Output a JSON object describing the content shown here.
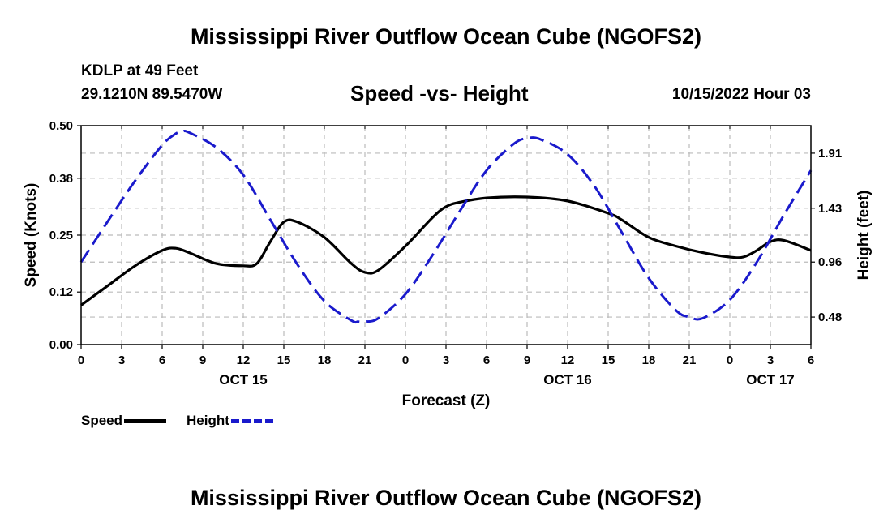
{
  "header": {
    "title": "Mississippi River Outflow Ocean Cube (NGOFS2)",
    "station": "KDLP at 49 Feet",
    "coords": "29.1210N  89.5470W",
    "chart_title": "Speed -vs- Height",
    "datetime": "10/15/2022 Hour 03"
  },
  "footer": {
    "title": "Mississippi River Outflow Ocean Cube (NGOFS2)"
  },
  "legend": {
    "speed_label": "Speed",
    "height_label": "Height"
  },
  "colors": {
    "speed": "#000000",
    "height": "#1a1acc",
    "grid": "#bbbbbb"
  },
  "chart_data": {
    "type": "line",
    "title": "Speed -vs- Height",
    "xlabel": "Forecast (Z)",
    "ylabel": "Speed (Knots)",
    "y2label": "Height (feet)",
    "grid": true,
    "legend_position": "bottom-left",
    "xlim": [
      0,
      54
    ],
    "ylim": [
      0,
      0.5
    ],
    "y2lim": [
      0.24,
      2.15
    ],
    "x_ticks": [
      0,
      3,
      6,
      9,
      12,
      15,
      18,
      21,
      24,
      27,
      30,
      33,
      36,
      39,
      42,
      45,
      48,
      51,
      54
    ],
    "x_tick_labels": [
      "0",
      "3",
      "6",
      "9",
      "12",
      "15",
      "18",
      "21",
      "0",
      "3",
      "6",
      "9",
      "12",
      "15",
      "18",
      "21",
      "0",
      "3",
      "6"
    ],
    "day_labels": [
      {
        "x": 12,
        "label": "OCT 15"
      },
      {
        "x": 36,
        "label": "OCT 16"
      },
      {
        "x": 51,
        "label": "OCT 17"
      }
    ],
    "y_ticks": [
      0.0,
      0.12,
      0.25,
      0.38,
      0.5
    ],
    "y_tick_labels": [
      "0.00",
      "0.12",
      "0.25",
      "0.38",
      "0.50"
    ],
    "y2_ticks": [
      0.48,
      0.96,
      1.43,
      1.91
    ],
    "y2_tick_labels": [
      "0.48",
      "0.96",
      "1.43",
      "1.91"
    ],
    "series": [
      {
        "name": "Speed",
        "axis": "left",
        "style": "solid",
        "x": [
          0,
          2,
          4,
          6,
          7,
          8,
          10,
          12,
          13,
          14,
          15,
          16,
          18,
          20,
          21,
          22,
          24,
          26,
          27,
          28,
          30,
          33,
          36,
          39,
          40,
          42,
          44,
          46,
          48,
          49,
          50,
          51,
          52,
          54
        ],
        "y": [
          0.09,
          0.135,
          0.18,
          0.215,
          0.22,
          0.21,
          0.185,
          0.18,
          0.185,
          0.235,
          0.28,
          0.28,
          0.245,
          0.185,
          0.165,
          0.17,
          0.225,
          0.29,
          0.315,
          0.325,
          0.335,
          0.337,
          0.328,
          0.3,
          0.285,
          0.245,
          0.225,
          0.21,
          0.2,
          0.2,
          0.215,
          0.235,
          0.238,
          0.215
        ]
      },
      {
        "name": "Height",
        "axis": "right",
        "style": "dashed",
        "x": [
          0,
          2,
          4,
          6,
          7,
          7.5,
          8,
          10,
          12,
          14,
          16,
          18,
          20,
          20.5,
          21,
          22,
          24,
          26,
          28,
          30,
          32,
          33,
          34,
          36,
          38,
          40,
          42,
          44,
          45,
          46,
          48,
          50,
          52,
          54
        ],
        "y": [
          0.96,
          1.32,
          1.67,
          1.98,
          2.08,
          2.1,
          2.09,
          1.96,
          1.72,
          1.33,
          0.94,
          0.62,
          0.45,
          0.44,
          0.44,
          0.47,
          0.68,
          1.02,
          1.4,
          1.76,
          1.99,
          2.04,
          2.03,
          1.9,
          1.62,
          1.22,
          0.82,
          0.54,
          0.48,
          0.47,
          0.63,
          0.96,
          1.37,
          1.76
        ]
      }
    ]
  }
}
